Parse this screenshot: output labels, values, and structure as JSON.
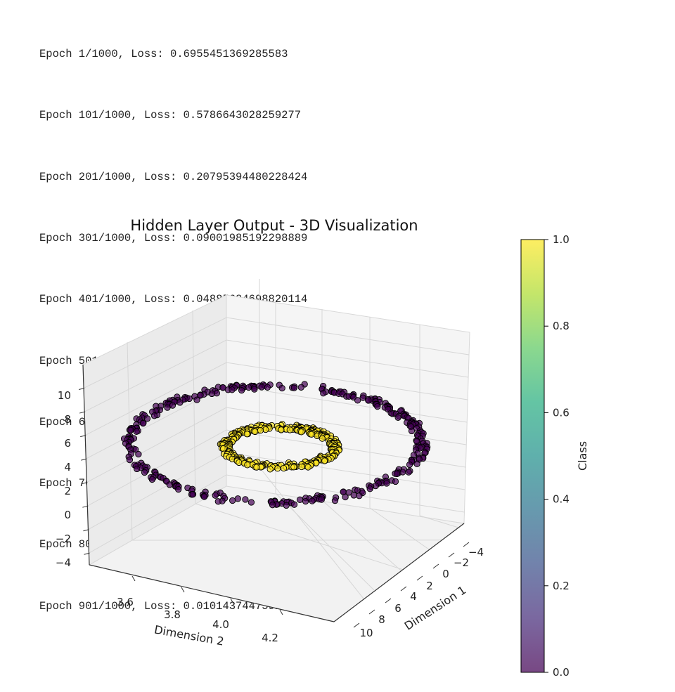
{
  "console": {
    "lines": [
      "Epoch 1/1000, Loss: 0.6955451369285583",
      "Epoch 101/1000, Loss: 0.5786643028259277",
      "Epoch 201/1000, Loss: 0.20795394480228424",
      "Epoch 301/1000, Loss: 0.09001985192298889",
      "Epoch 401/1000, Loss: 0.04885684698820114",
      "Epoch 501/1000, Loss: 0.0313161984086036",
      "Epoch 601/1000, Loss: 0.022008681669831276",
      "Epoch 701/1000, Loss: 0.016381656751036644",
      "Epoch 801/1000, Loss: 0.012696584686636925",
      "Epoch 901/1000, Loss: 0.010143744759261608"
    ]
  },
  "chart_data": {
    "type": "scatter",
    "projection": "3d",
    "title": "Hidden Layer Output - 3D Visualization",
    "x_axis": {
      "label": "Dimension 1",
      "ticks": [
        "−4",
        "−2",
        "0",
        "2",
        "4",
        "6",
        "8",
        "10"
      ],
      "values": [
        -4,
        -2,
        0,
        2,
        4,
        6,
        8,
        10
      ]
    },
    "y_axis": {
      "label": "Dimension 2",
      "ticks": [
        "3.6",
        "3.8",
        "4.0",
        "4.2"
      ],
      "values": [
        3.6,
        3.8,
        4.0,
        4.2
      ]
    },
    "z_axis": {
      "label": "",
      "ticks": [
        "−4",
        "−2",
        "0",
        "2",
        "4",
        "6",
        "8",
        "10"
      ],
      "values": [
        -4,
        -2,
        0,
        2,
        4,
        6,
        8,
        10
      ]
    },
    "grid": true,
    "series": [
      {
        "class": 0.0,
        "color": "#440154",
        "shape": "outer ring"
      },
      {
        "class": 1.0,
        "color": "#fde725",
        "shape": "inner ring"
      }
    ],
    "marker_edge_color": "#000000",
    "alpha": 0.7,
    "colorbar": {
      "label": "Class",
      "range": [
        0.0,
        1.0
      ],
      "ticks": [
        "0.0",
        "0.2",
        "0.4",
        "0.6",
        "0.8",
        "1.0"
      ],
      "colormap": "viridis"
    }
  }
}
